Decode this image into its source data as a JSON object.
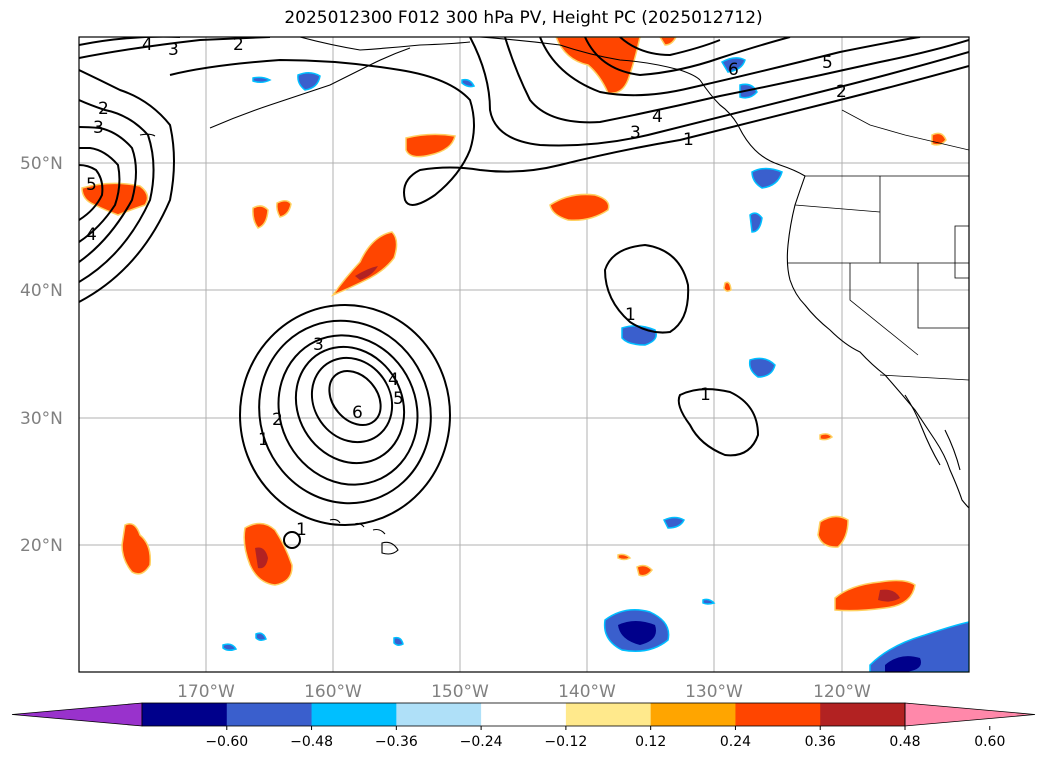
{
  "title": "2025012300 F012 300 hPa PV, Height PC (2025012712)",
  "latitude_labels": [
    "50°N",
    "40°N",
    "30°N",
    "20°N"
  ],
  "longitude_labels": [
    "170°W",
    "160°W",
    "150°W",
    "140°W",
    "130°W",
    "120°W"
  ],
  "colorbar": {
    "tick_labels": [
      "−0.60",
      "−0.48",
      "−0.36",
      "−0.24",
      "−0.12",
      "0.12",
      "0.24",
      "0.36",
      "0.48",
      "0.60"
    ],
    "colors": [
      "#9932cc",
      "#00008b",
      "#3a5fcd",
      "#00bfff",
      "#afe0f8",
      "#ffffff",
      "#ffe98c",
      "#ffa500",
      "#ff4500",
      "#b22222",
      "#ff88aa"
    ]
  },
  "contour_labels": {
    "nw_corner": [
      "4",
      "3",
      "2",
      "2",
      "3",
      "5",
      "4"
    ],
    "northeast_band": [
      "6",
      "5",
      "2",
      "4",
      "3",
      "1"
    ],
    "central_low": [
      "3",
      "4",
      "5",
      "6",
      "2",
      "1",
      "1"
    ],
    "east_small": [
      "1",
      "1"
    ]
  }
}
